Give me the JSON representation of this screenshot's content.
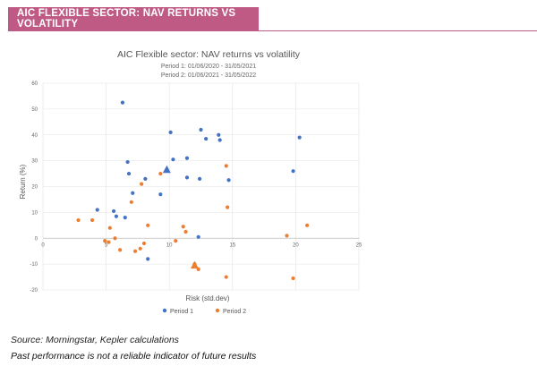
{
  "header": {
    "title": "AIC FLEXIBLE SECTOR: NAV RETURNS VS VOLATILITY"
  },
  "colors": {
    "accent": "#bf5a84",
    "period1": "#4472c4",
    "period2": "#ed7d31"
  },
  "chart_data": {
    "type": "scatter",
    "title": "AIC Flexible sector: NAV returns vs volatility",
    "subtitle_lines": [
      "Period 1: 01/06/2020 - 31/05/2021",
      "Period 2: 01/06/2021 - 31/05/2022"
    ],
    "xlabel": "Risk (std.dev)",
    "ylabel": "Return (%)",
    "xlim": [
      0,
      25
    ],
    "ylim": [
      -20,
      60
    ],
    "x_ticks": [
      0,
      5,
      10,
      15,
      20,
      25
    ],
    "y_ticks": [
      -20,
      -10,
      0,
      10,
      20,
      30,
      40,
      50,
      60
    ],
    "legend_position": "bottom-center",
    "series": [
      {
        "name": "Period 1",
        "marker": "circle",
        "points": [
          [
            4.3,
            11
          ],
          [
            5.6,
            10.5
          ],
          [
            5.8,
            8.5
          ],
          [
            6.3,
            52.5
          ],
          [
            6.5,
            8
          ],
          [
            6.7,
            29.5
          ],
          [
            6.8,
            25
          ],
          [
            7.1,
            17.5
          ],
          [
            8.1,
            23
          ],
          [
            8.3,
            -8
          ],
          [
            9.3,
            17
          ],
          [
            10.1,
            41
          ],
          [
            10.3,
            30.5
          ],
          [
            11.4,
            31
          ],
          [
            11.4,
            23.5
          ],
          [
            12.3,
            0.5
          ],
          [
            12.4,
            23
          ],
          [
            12.5,
            42
          ],
          [
            12.9,
            38.5
          ],
          [
            13.9,
            40
          ],
          [
            14.0,
            38
          ],
          [
            14.7,
            22.5
          ],
          [
            19.8,
            26
          ],
          [
            20.3,
            39
          ]
        ],
        "highlight": {
          "marker": "triangle",
          "point": [
            9.8,
            26.5
          ]
        }
      },
      {
        "name": "Period 2",
        "marker": "circle",
        "points": [
          [
            2.8,
            7
          ],
          [
            3.9,
            7
          ],
          [
            4.9,
            -1
          ],
          [
            5.2,
            -1.5
          ],
          [
            5.3,
            4
          ],
          [
            5.7,
            0
          ],
          [
            6.1,
            -4.5
          ],
          [
            7.0,
            14
          ],
          [
            7.3,
            -5
          ],
          [
            7.7,
            -4
          ],
          [
            7.8,
            21
          ],
          [
            8.0,
            -2
          ],
          [
            8.3,
            5
          ],
          [
            9.3,
            25
          ],
          [
            10.5,
            -1
          ],
          [
            11.1,
            4.5
          ],
          [
            11.3,
            2.5
          ],
          [
            12.0,
            -10
          ],
          [
            12.3,
            -12
          ],
          [
            14.5,
            28
          ],
          [
            14.6,
            12
          ],
          [
            14.5,
            -15
          ],
          [
            19.3,
            1
          ],
          [
            19.8,
            -15.5
          ],
          [
            20.9,
            5
          ]
        ],
        "highlight": {
          "marker": "triangle",
          "point": [
            12.0,
            -10.5
          ]
        }
      }
    ]
  },
  "footer": {
    "source": "Source: Morningstar, Kepler calculations",
    "disclaimer": "Past performance is not a reliable indicator of future results"
  }
}
